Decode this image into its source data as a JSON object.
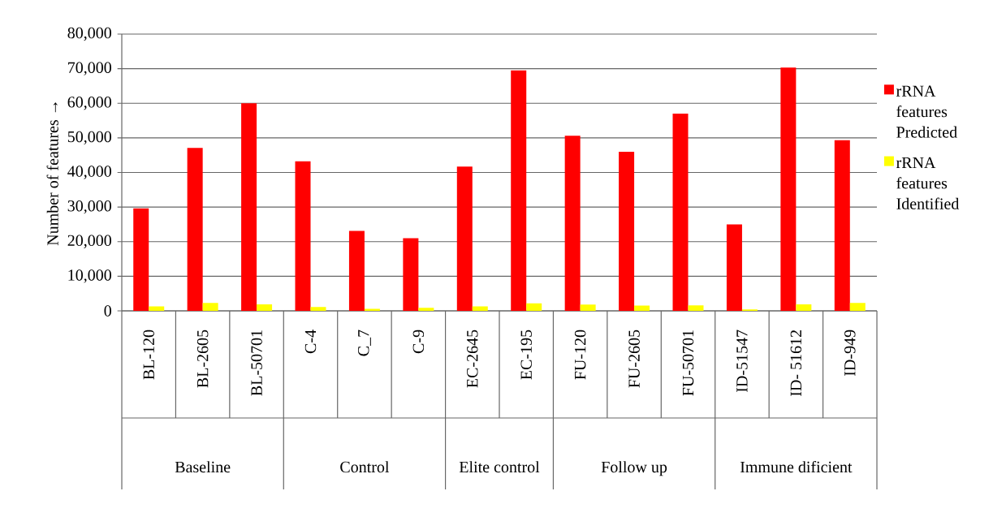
{
  "chart_data": {
    "type": "bar",
    "ylabel": "Number of features →",
    "categories": [
      "BL-120",
      "BL-2605",
      "BL-50701",
      "C-4",
      "C_7",
      "C-9",
      "EC-2645",
      "EC-195",
      "FU-120",
      "FU-2605",
      "FU-50701",
      "ID-51547",
      "ID- 51612",
      "ID-949"
    ],
    "series": [
      {
        "name": "rRNA features Predicted",
        "color": "#ff0000",
        "values": [
          29600,
          47100,
          60000,
          43200,
          23100,
          21000,
          41700,
          69500,
          50600,
          46000,
          57000,
          25000,
          70300,
          49300
        ]
      },
      {
        "name": "rRNA features Identified",
        "color": "#ffff00",
        "values": [
          1300,
          2300,
          1900,
          1100,
          600,
          900,
          1300,
          2200,
          1800,
          1500,
          1600,
          400,
          1900,
          2300
        ]
      }
    ],
    "ylim": [
      0,
      80000
    ],
    "yticks": [
      0,
      {
        "value": 10000,
        "label": "10,000"
      },
      {
        "value": 20000,
        "label": "20,000"
      },
      {
        "value": 30000,
        "label": "30,000"
      },
      {
        "value": 40000,
        "label": "40,000"
      },
      {
        "value": 50000,
        "label": "50,000"
      },
      {
        "value": 60000,
        "label": "60,000"
      },
      {
        "value": 70000,
        "label": "70,000"
      },
      {
        "value": 80000,
        "label": "80,000"
      }
    ],
    "grid": "y",
    "legend": "right",
    "annotations": [
      "Baseline",
      "Control",
      "Elite control",
      "Follow up",
      "Immune dificient"
    ]
  }
}
